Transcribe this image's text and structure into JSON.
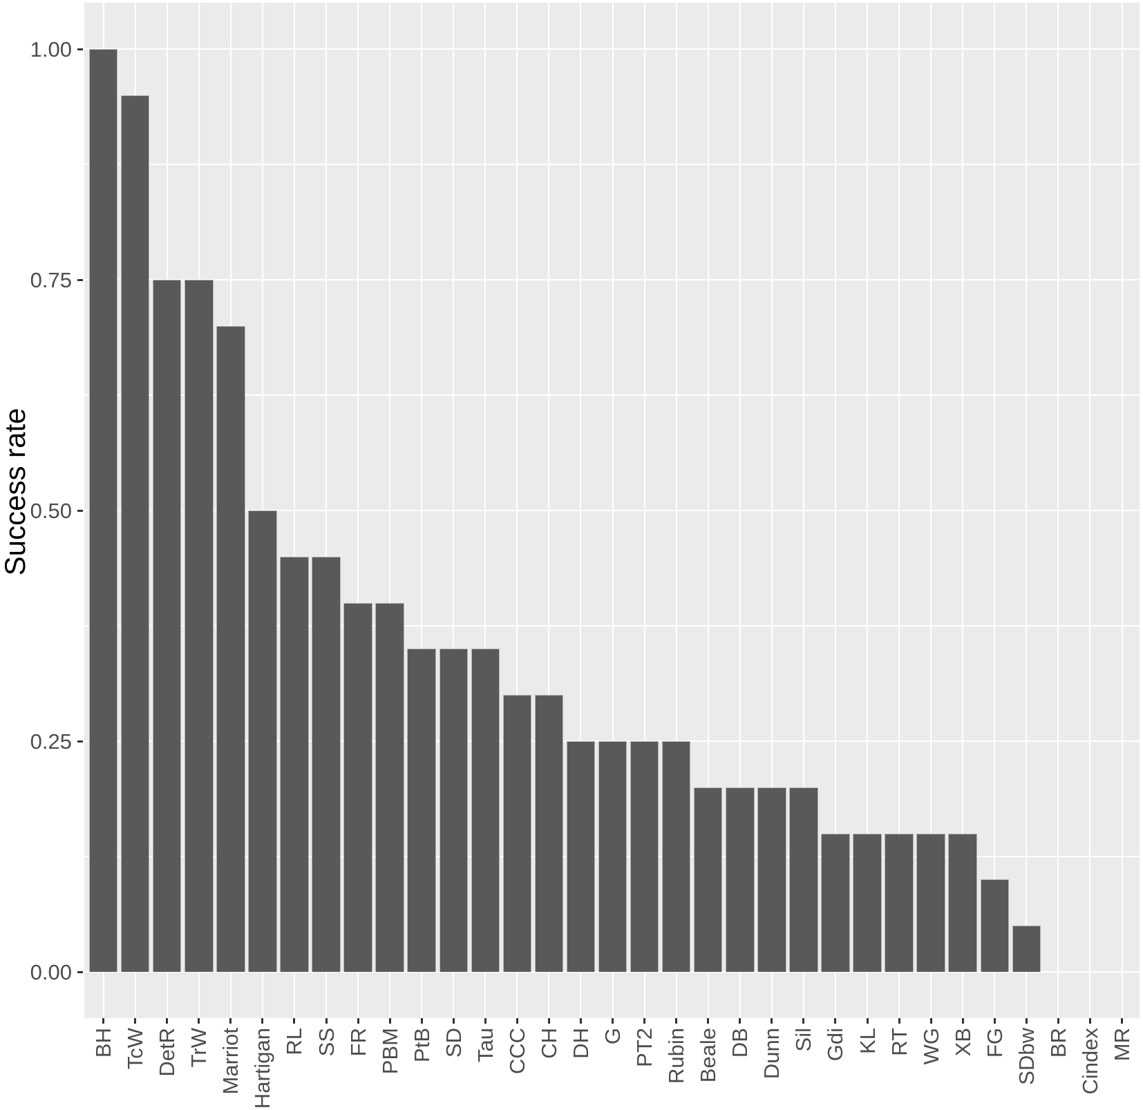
{
  "chart_data": {
    "type": "bar",
    "title": "",
    "xlabel": "",
    "ylabel": "Success rate",
    "categories": [
      "BH",
      "TcW",
      "DetR",
      "TrW",
      "Marriot",
      "Hartigan",
      "RL",
      "SS",
      "FR",
      "PBM",
      "PtB",
      "SD",
      "Tau",
      "CCC",
      "CH",
      "DH",
      "G",
      "PT2",
      "Rubin",
      "Beale",
      "DB",
      "Dunn",
      "Sil",
      "Gdi",
      "KL",
      "RT",
      "WG",
      "XB",
      "FG",
      "SDbw",
      "BR",
      "Cindex",
      "MR"
    ],
    "values": [
      1.0,
      0.95,
      0.75,
      0.75,
      0.7,
      0.5,
      0.45,
      0.45,
      0.4,
      0.4,
      0.35,
      0.35,
      0.35,
      0.3,
      0.3,
      0.25,
      0.25,
      0.25,
      0.25,
      0.2,
      0.2,
      0.2,
      0.2,
      0.15,
      0.15,
      0.15,
      0.15,
      0.15,
      0.1,
      0.05,
      0.0,
      0.0,
      0.0
    ],
    "ylim": [
      0,
      1
    ],
    "y_tick_values": [
      0,
      0.25,
      0.5,
      0.75,
      1.0
    ],
    "y_tick_labels": [
      "0.00",
      "0.25",
      "0.50",
      "0.75",
      "1.00"
    ],
    "y_minor_tick_values": [
      0.125,
      0.375,
      0.625,
      0.875
    ],
    "grid": "white major and minor horizontal lines, white vertical line per category, on gray panel",
    "legend": "none",
    "x_tick_label_rotation_degrees": 90,
    "colors": {
      "bar_fill": "#595959",
      "bar_edge": "#C3C3C3",
      "panel_background": "#EBEBEB",
      "gridline": "#FFFFFF",
      "axis_text": "#4D4D4D",
      "axis_title": "#000000",
      "tick_mark": "#333333",
      "page_background": "#FFFFFF"
    }
  }
}
